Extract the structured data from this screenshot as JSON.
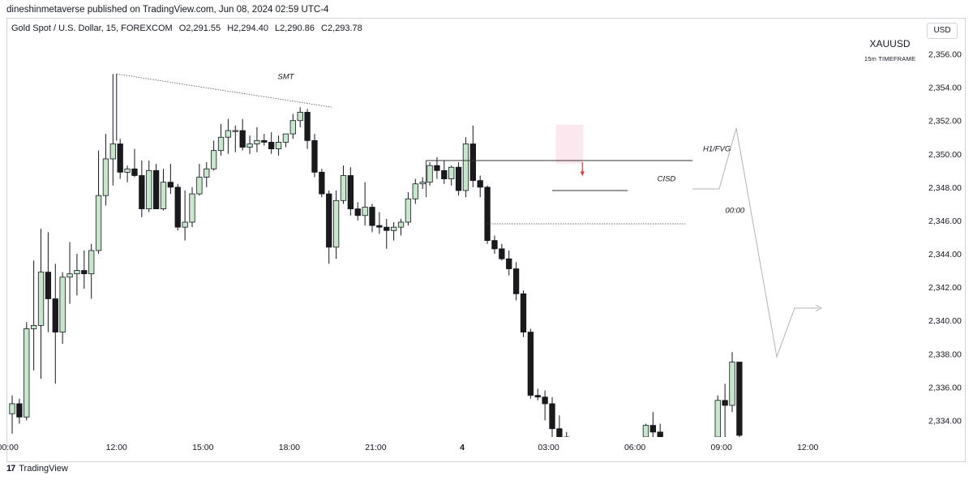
{
  "header": {
    "published": "dineshinmetaverse published on TradingView.com, Jun 08, 2024 02:59 UTC-4",
    "instrument": "Gold Spot / U.S. Dollar, 15, FOREXCOM",
    "open": "O2,291.55",
    "high": "H2,294.40",
    "low": "L2,290.86",
    "close": "C2,293.78"
  },
  "currency_button": "USD",
  "ticker": "XAUUSD",
  "timeframe_label": "15m TIMEFRAME",
  "footer_logo_text": "TradingView",
  "colors": {
    "up": "#c8e6c9",
    "down": "#1a1a1a",
    "wick": "#131722",
    "grid_border": "#d1d4dc",
    "fvg_box": "#fce4ec",
    "arrow": "#e53935"
  },
  "chart_data": {
    "type": "candlestick",
    "xlabel": "",
    "ylabel": "",
    "ylim": [
      2332.8,
      2357.3
    ],
    "y_ticks": [
      "2,356.00",
      "2,354.00",
      "2,352.00",
      "2,350.00",
      "2,348.00",
      "2,346.00",
      "2,344.00",
      "2,342.00",
      "2,340.00",
      "2,338.00",
      "2,336.00",
      "2,334.00"
    ],
    "x_ticks": [
      {
        "label": "00:00",
        "bar": -0.6
      },
      {
        "label": "12:00",
        "bar": 14.5
      },
      {
        "label": "15:00",
        "bar": 26.5
      },
      {
        "label": "18:00",
        "bar": 38.5
      },
      {
        "label": "21:00",
        "bar": 50.5
      },
      {
        "label": "4",
        "bar": 62.5
      },
      {
        "label": "03:00",
        "bar": 74.5
      },
      {
        "label": "06:00",
        "bar": 86.5
      },
      {
        "label": "09:00",
        "bar": 98.5
      },
      {
        "label": "12:00",
        "bar": 110.5
      }
    ],
    "candles": [
      {
        "o": 2334.4,
        "h": 2335.5,
        "l": 2333.2,
        "c": 2335.0
      },
      {
        "o": 2335.0,
        "h": 2335.3,
        "l": 2333.8,
        "c": 2334.2
      },
      {
        "o": 2334.2,
        "h": 2339.9,
        "l": 2334.0,
        "c": 2339.5
      },
      {
        "o": 2339.5,
        "h": 2343.6,
        "l": 2337.0,
        "c": 2339.7
      },
      {
        "o": 2339.7,
        "h": 2345.5,
        "l": 2336.5,
        "c": 2342.9
      },
      {
        "o": 2342.9,
        "h": 2345.3,
        "l": 2339.3,
        "c": 2341.3
      },
      {
        "o": 2341.3,
        "h": 2343.4,
        "l": 2336.2,
        "c": 2339.3
      },
      {
        "o": 2339.3,
        "h": 2342.9,
        "l": 2338.6,
        "c": 2342.6
      },
      {
        "o": 2342.6,
        "h": 2344.7,
        "l": 2341.0,
        "c": 2342.8
      },
      {
        "o": 2342.8,
        "h": 2344.0,
        "l": 2341.5,
        "c": 2343.0
      },
      {
        "o": 2343.0,
        "h": 2344.2,
        "l": 2341.9,
        "c": 2342.8
      },
      {
        "o": 2342.8,
        "h": 2344.6,
        "l": 2341.3,
        "c": 2344.2
      },
      {
        "o": 2344.2,
        "h": 2350.2,
        "l": 2344.0,
        "c": 2347.5
      },
      {
        "o": 2347.5,
        "h": 2351.2,
        "l": 2346.9,
        "c": 2349.7
      },
      {
        "o": 2349.7,
        "h": 2354.8,
        "l": 2348.1,
        "c": 2350.6
      },
      {
        "o": 2350.6,
        "h": 2350.9,
        "l": 2348.5,
        "c": 2348.9
      },
      {
        "o": 2348.9,
        "h": 2349.3,
        "l": 2348.3,
        "c": 2349.1
      },
      {
        "o": 2349.1,
        "h": 2350.3,
        "l": 2348.6,
        "c": 2348.7
      },
      {
        "o": 2348.7,
        "h": 2349.6,
        "l": 2346.2,
        "c": 2346.7
      },
      {
        "o": 2346.7,
        "h": 2349.6,
        "l": 2346.5,
        "c": 2349.0
      },
      {
        "o": 2349.0,
        "h": 2349.4,
        "l": 2346.9,
        "c": 2346.7
      },
      {
        "o": 2346.7,
        "h": 2349.1,
        "l": 2346.6,
        "c": 2348.3
      },
      {
        "o": 2348.3,
        "h": 2349.4,
        "l": 2347.6,
        "c": 2348.0
      },
      {
        "o": 2348.0,
        "h": 2348.2,
        "l": 2345.4,
        "c": 2345.6
      },
      {
        "o": 2345.6,
        "h": 2347.8,
        "l": 2344.8,
        "c": 2345.9
      },
      {
        "o": 2345.9,
        "h": 2348.0,
        "l": 2345.6,
        "c": 2347.6
      },
      {
        "o": 2347.6,
        "h": 2349.4,
        "l": 2347.5,
        "c": 2348.6
      },
      {
        "o": 2348.6,
        "h": 2349.5,
        "l": 2348.0,
        "c": 2349.1
      },
      {
        "o": 2349.1,
        "h": 2350.8,
        "l": 2349.0,
        "c": 2350.2
      },
      {
        "o": 2350.2,
        "h": 2351.8,
        "l": 2349.9,
        "c": 2351.0
      },
      {
        "o": 2351.0,
        "h": 2352.1,
        "l": 2350.0,
        "c": 2351.4
      },
      {
        "o": 2351.4,
        "h": 2351.7,
        "l": 2350.1,
        "c": 2351.4
      },
      {
        "o": 2351.4,
        "h": 2352.1,
        "l": 2350.2,
        "c": 2350.4
      },
      {
        "o": 2350.4,
        "h": 2351.1,
        "l": 2350.0,
        "c": 2350.6
      },
      {
        "o": 2350.6,
        "h": 2351.6,
        "l": 2350.1,
        "c": 2350.8
      },
      {
        "o": 2350.8,
        "h": 2351.2,
        "l": 2350.5,
        "c": 2350.7
      },
      {
        "o": 2350.7,
        "h": 2351.3,
        "l": 2350.0,
        "c": 2350.3
      },
      {
        "o": 2350.3,
        "h": 2351.1,
        "l": 2349.9,
        "c": 2350.7
      },
      {
        "o": 2350.7,
        "h": 2351.2,
        "l": 2350.4,
        "c": 2351.2
      },
      {
        "o": 2351.2,
        "h": 2352.4,
        "l": 2350.9,
        "c": 2352.0
      },
      {
        "o": 2352.0,
        "h": 2352.8,
        "l": 2351.6,
        "c": 2352.5
      },
      {
        "o": 2352.5,
        "h": 2352.7,
        "l": 2350.3,
        "c": 2350.8
      },
      {
        "o": 2350.8,
        "h": 2351.2,
        "l": 2348.6,
        "c": 2348.9
      },
      {
        "o": 2348.9,
        "h": 2349.1,
        "l": 2347.4,
        "c": 2347.6
      },
      {
        "o": 2347.6,
        "h": 2347.8,
        "l": 2343.4,
        "c": 2344.4
      },
      {
        "o": 2344.4,
        "h": 2347.8,
        "l": 2343.7,
        "c": 2347.2
      },
      {
        "o": 2347.2,
        "h": 2349.3,
        "l": 2347.0,
        "c": 2348.7
      },
      {
        "o": 2348.7,
        "h": 2349.2,
        "l": 2346.3,
        "c": 2346.7
      },
      {
        "o": 2346.7,
        "h": 2347.1,
        "l": 2346.0,
        "c": 2346.3
      },
      {
        "o": 2346.3,
        "h": 2348.3,
        "l": 2345.7,
        "c": 2346.8
      },
      {
        "o": 2346.8,
        "h": 2347.0,
        "l": 2345.3,
        "c": 2345.7
      },
      {
        "o": 2345.7,
        "h": 2346.5,
        "l": 2345.2,
        "c": 2345.6
      },
      {
        "o": 2345.6,
        "h": 2346.1,
        "l": 2344.3,
        "c": 2345.4
      },
      {
        "o": 2345.4,
        "h": 2345.9,
        "l": 2344.8,
        "c": 2345.6
      },
      {
        "o": 2345.6,
        "h": 2346.1,
        "l": 2345.1,
        "c": 2345.9
      },
      {
        "o": 2345.9,
        "h": 2347.7,
        "l": 2345.7,
        "c": 2347.3
      },
      {
        "o": 2347.3,
        "h": 2348.5,
        "l": 2347.0,
        "c": 2348.2
      },
      {
        "o": 2348.2,
        "h": 2348.6,
        "l": 2347.9,
        "c": 2348.3
      },
      {
        "o": 2348.3,
        "h": 2349.5,
        "l": 2348.1,
        "c": 2349.3
      },
      {
        "o": 2349.3,
        "h": 2349.8,
        "l": 2348.5,
        "c": 2349.0
      },
      {
        "o": 2349.0,
        "h": 2349.6,
        "l": 2348.2,
        "c": 2348.5
      },
      {
        "o": 2348.5,
        "h": 2349.3,
        "l": 2348.1,
        "c": 2349.2
      },
      {
        "o": 2349.2,
        "h": 2349.5,
        "l": 2347.5,
        "c": 2347.8
      },
      {
        "o": 2347.8,
        "h": 2351.0,
        "l": 2347.4,
        "c": 2350.6
      },
      {
        "o": 2350.6,
        "h": 2351.7,
        "l": 2348.0,
        "c": 2348.4
      },
      {
        "o": 2348.4,
        "h": 2348.7,
        "l": 2347.4,
        "c": 2348.0
      },
      {
        "o": 2348.0,
        "h": 2348.1,
        "l": 2344.6,
        "c": 2344.8
      },
      {
        "o": 2344.8,
        "h": 2345.1,
        "l": 2344.0,
        "c": 2344.3
      },
      {
        "o": 2344.3,
        "h": 2344.6,
        "l": 2343.6,
        "c": 2343.7
      },
      {
        "o": 2343.7,
        "h": 2344.2,
        "l": 2342.7,
        "c": 2343.1
      },
      {
        "o": 2343.1,
        "h": 2343.5,
        "l": 2341.2,
        "c": 2341.6
      },
      {
        "o": 2341.6,
        "h": 2341.8,
        "l": 2339.0,
        "c": 2339.3
      },
      {
        "o": 2339.3,
        "h": 2339.5,
        "l": 2335.3,
        "c": 2335.5
      },
      {
        "o": 2335.5,
        "h": 2335.9,
        "l": 2335.2,
        "c": 2335.4
      },
      {
        "o": 2335.4,
        "h": 2335.8,
        "l": 2334.0,
        "c": 2335.0
      },
      {
        "o": 2335.0,
        "h": 2335.4,
        "l": 2333.0,
        "c": 2333.5
      },
      {
        "o": 2333.5,
        "h": 2334.3,
        "l": 2333.0,
        "c": 2333.0
      },
      {
        "o": 2333.0,
        "h": 2333.3,
        "l": 2333.0,
        "c": 2333.0
      },
      {
        "o": 2333.0,
        "h": 2333.0,
        "l": 2333.0,
        "c": 2333.0
      },
      {
        "o": 2333.0,
        "h": 2333.0,
        "l": 2333.0,
        "c": 2333.0
      },
      {
        "o": 2333.0,
        "h": 2333.0,
        "l": 2333.0,
        "c": 2333.0
      },
      {
        "o": 2333.0,
        "h": 2333.0,
        "l": 2333.0,
        "c": 2333.0
      },
      {
        "o": 2333.0,
        "h": 2333.0,
        "l": 2333.0,
        "c": 2333.0
      },
      {
        "o": 2333.0,
        "h": 2333.0,
        "l": 2333.0,
        "c": 2333.0
      },
      {
        "o": 2333.0,
        "h": 2333.0,
        "l": 2333.0,
        "c": 2333.0
      },
      {
        "o": 2333.0,
        "h": 2333.0,
        "l": 2333.0,
        "c": 2333.0
      },
      {
        "o": 2333.0,
        "h": 2333.0,
        "l": 2333.0,
        "c": 2333.0
      },
      {
        "o": 2333.0,
        "h": 2333.0,
        "l": 2333.0,
        "c": 2333.0
      },
      {
        "o": 2333.0,
        "h": 2333.8,
        "l": 2332.8,
        "c": 2333.7
      },
      {
        "o": 2333.7,
        "h": 2334.5,
        "l": 2333.0,
        "c": 2333.3
      },
      {
        "o": 2333.3,
        "h": 2333.8,
        "l": 2333.0,
        "c": 2333.0
      },
      {
        "o": 2333.0,
        "h": 2333.0,
        "l": 2333.0,
        "c": 2333.0
      },
      {
        "o": 2333.0,
        "h": 2333.0,
        "l": 2333.0,
        "c": 2333.0
      },
      {
        "o": 2333.0,
        "h": 2333.0,
        "l": 2333.0,
        "c": 2333.0
      },
      {
        "o": 2333.0,
        "h": 2333.0,
        "l": 2333.0,
        "c": 2333.0
      },
      {
        "o": 2333.0,
        "h": 2333.0,
        "l": 2333.0,
        "c": 2333.0
      },
      {
        "o": 2333.0,
        "h": 2333.0,
        "l": 2333.0,
        "c": 2333.0
      },
      {
        "o": 2333.0,
        "h": 2333.0,
        "l": 2333.0,
        "c": 2333.0
      },
      {
        "o": 2333.0,
        "h": 2335.5,
        "l": 2333.0,
        "c": 2335.2
      },
      {
        "o": 2335.2,
        "h": 2336.2,
        "l": 2333.0,
        "c": 2334.9
      },
      {
        "o": 2334.9,
        "h": 2338.1,
        "l": 2334.5,
        "c": 2337.5
      },
      {
        "o": 2337.5,
        "h": 2337.5,
        "l": 2333.0,
        "c": 2333.1
      }
    ],
    "annotations": [
      {
        "type": "label",
        "text": "SMT",
        "bar": 38.0,
        "price": 2354.5
      },
      {
        "type": "label",
        "text": "H1/FVG",
        "bar": 99.0,
        "price": 2350.15
      },
      {
        "type": "label",
        "text": "CISD",
        "bar": 92.0,
        "price": 2348.35
      },
      {
        "type": "label",
        "text": "00:00",
        "bar": 101.5,
        "price": 2346.45
      }
    ]
  }
}
